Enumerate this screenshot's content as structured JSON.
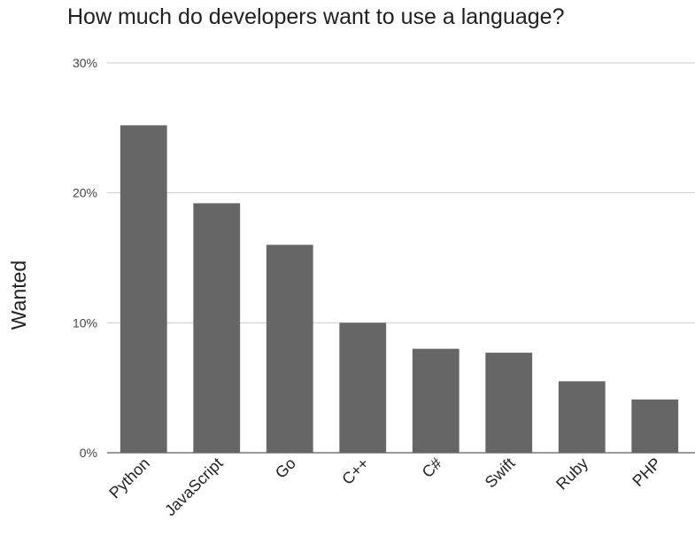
{
  "chart_data": {
    "type": "bar",
    "title": "How much do developers want to use a language?",
    "xlabel": "",
    "ylabel": "Wanted",
    "categories": [
      "Python",
      "JavaScript",
      "Go",
      "C++",
      "C#",
      "Swift",
      "Ruby",
      "PHP"
    ],
    "values": [
      25.2,
      19.2,
      16.0,
      10.0,
      8.0,
      7.7,
      5.5,
      4.1
    ],
    "ylim": [
      0,
      30
    ],
    "yticks": [
      0,
      10,
      20,
      30
    ],
    "ytick_labels": [
      "0%",
      "10%",
      "20%",
      "30%"
    ],
    "grid": true,
    "legend": "none",
    "bar_color": "#666666"
  }
}
